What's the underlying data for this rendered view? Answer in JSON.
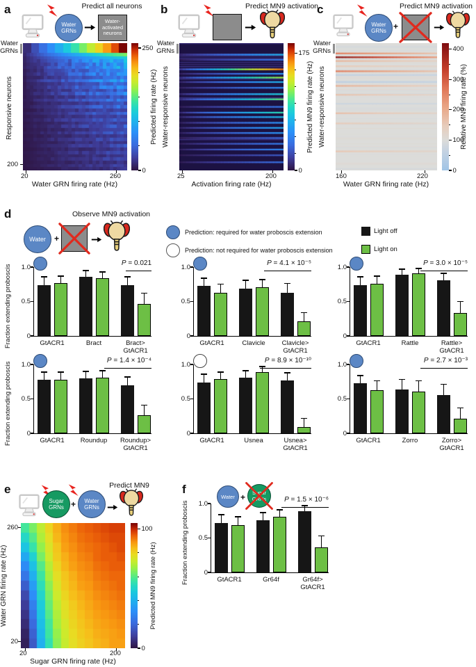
{
  "symbols": {
    "plus": "+"
  },
  "colors": {
    "water_blue": "#5b87c5",
    "water_border": "#2c4a74",
    "sugar_green": "#169a62",
    "sugar_border": "#0a4f33",
    "bar_green": "#6dbf45",
    "bar_black": "#161616",
    "box_gray": "#8c8c8c",
    "cross_red": "#e02a1e",
    "bolt_red": "#e8241f"
  },
  "bar_axis": {
    "y_label": "Fraction extending proboscis",
    "y_ticks": [
      {
        "t": "1.0",
        "v": 1
      },
      {
        "t": "0.5",
        "v": 0.5
      },
      {
        "t": "0",
        "v": 0
      }
    ]
  },
  "panels": {
    "a": {
      "label": "a",
      "title": "Predict all neurons",
      "water_circle": "Water\nGRNs",
      "result_box": "Water-\nactivated\nneurons",
      "y_top": "Water\nGRNs",
      "y_label": "Responsive neurons",
      "y_bottom_tick": "200",
      "x_ticks": [
        "20",
        "260"
      ],
      "x_label": "Water GRN firing rate (Hz)",
      "colorbar_label": "Predicted firing rate (Hz)"
    },
    "b": {
      "label": "b",
      "title": "Predict MN9 activation",
      "y_top": "Water\nGRNs",
      "y_label": "Water-responsive neurons",
      "x_ticks": [
        "25",
        "200"
      ],
      "x_label": "Activation firing rate (Hz)",
      "colorbar_label": "Predicted MN9 firing rate (Hz)"
    },
    "c": {
      "label": "c",
      "title": "Predict MN9 activation",
      "water_circle": "Water\nGRNs",
      "y_top": "Water\nGRNs",
      "y_label": "Water-responsive neurons",
      "x_ticks": [
        "160",
        "220"
      ],
      "x_label": "Water GRN firing rate (Hz)",
      "colorbar_label": "Relative MN9 firing rate (%)"
    },
    "d": {
      "label": "d",
      "title": "Observe MN9 activation",
      "water_circle": "Water",
      "legend": [
        {
          "marker": "blue",
          "text": "Prediction: required for water proboscis extension"
        },
        {
          "marker": "white",
          "text": "Prediction: not required for water proboscis extension"
        }
      ],
      "light_off": "Light off",
      "light_on": "Light on"
    },
    "e": {
      "label": "e",
      "title": "Predict MN9",
      "sugar_circle": "Sugar\nGRNs",
      "water_circle": "Water\nGRNs",
      "y_ticks": [
        "260",
        "20"
      ],
      "y_label": "Water GRN firing rate (Hz)",
      "x_ticks": [
        "20",
        "200"
      ],
      "x_label": "Sugar GRN firing rate (Hz)",
      "colorbar_label": "Predicted MN9 firing rate (Hz)"
    },
    "f": {
      "label": "f",
      "water_circle": "Water",
      "sugar_circle": "Sugar\nGRNs"
    }
  },
  "chart_data": {
    "a": {
      "type": "heatmap",
      "title": "Predict all neurons",
      "colormap": "turbo",
      "x_label": "Water GRN firing rate (Hz)",
      "x_range": [
        20,
        260
      ],
      "y_label": "Responsive neurons (Water GRNs at top, ~200 rows)",
      "vmax": 260,
      "water_band_cols": 13,
      "row_gains": [
        0.62,
        0.47,
        0.4,
        0.34,
        0.37,
        0.28,
        0.32,
        0.24,
        0.34,
        0.22,
        0.28,
        0.19,
        0.26,
        0.17,
        0.24,
        0.15,
        0.22,
        0.14,
        0.2,
        0.13,
        0.18,
        0.12,
        0.17,
        0.11,
        0.16,
        0.1,
        0.15,
        0.1,
        0.14,
        0.09,
        0.13,
        0.09,
        0.12,
        0.08,
        0.11,
        0.08
      ],
      "colorbar": {
        "label": "Predicted firing rate (Hz)",
        "max": 260,
        "ticks": [
          250,
          0
        ],
        "minor": 50
      }
    },
    "b": {
      "type": "heatmap",
      "title": "Predict MN9 activation",
      "colormap": "turbo",
      "x_label": "Activation firing rate (Hz)",
      "x_range": [
        25,
        200
      ],
      "y_label": "Water-responsive neurons",
      "vmax": 190,
      "streaks": [
        {
          "y": 0.085,
          "v": 75
        },
        {
          "y": 0.125,
          "v": 45
        },
        {
          "y": 0.2,
          "v": 170
        },
        {
          "y": 0.235,
          "v": 60
        },
        {
          "y": 0.265,
          "v": 125
        },
        {
          "y": 0.3,
          "v": 75
        },
        {
          "y": 0.345,
          "v": 55
        },
        {
          "y": 0.395,
          "v": 90
        },
        {
          "y": 0.435,
          "v": 115
        },
        {
          "y": 0.495,
          "v": 45
        },
        {
          "y": 0.54,
          "v": 100
        },
        {
          "y": 0.575,
          "v": 80
        },
        {
          "y": 0.62,
          "v": 60
        },
        {
          "y": 0.66,
          "v": 70
        },
        {
          "y": 0.7,
          "v": 62
        },
        {
          "y": 0.74,
          "v": 38
        },
        {
          "y": 0.785,
          "v": 48
        },
        {
          "y": 0.83,
          "v": 55
        },
        {
          "y": 0.875,
          "v": 32
        },
        {
          "y": 0.93,
          "v": 42
        }
      ],
      "colorbar": {
        "label": "Predicted MN9 firing rate (Hz)",
        "max": 190,
        "ticks": [
          175,
          0
        ],
        "minor": 25
      }
    },
    "c": {
      "type": "heatmap",
      "title": "Predict MN9 activation",
      "colormap": "coolwarm-light",
      "x_label": "Water GRN firing rate (Hz)",
      "x_range": [
        160,
        220
      ],
      "y_label": "Water-responsive neurons",
      "vmax": 420,
      "background": 100,
      "streaks": [
        {
          "y": 0.075,
          "v": 260
        },
        {
          "y": 0.105,
          "v": 410
        },
        {
          "y": 0.135,
          "v": 180
        },
        {
          "y": 0.175,
          "v": 150
        },
        {
          "y": 0.215,
          "v": 260
        },
        {
          "y": 0.245,
          "v": 60
        },
        {
          "y": 0.3,
          "v": 55
        },
        {
          "y": 0.33,
          "v": 190
        },
        {
          "y": 0.4,
          "v": 165
        },
        {
          "y": 0.47,
          "v": 75
        },
        {
          "y": 0.545,
          "v": 170
        },
        {
          "y": 0.625,
          "v": 150
        },
        {
          "y": 0.845,
          "v": 155
        }
      ],
      "colorbar": {
        "label": "Relative MN9 firing rate (%)",
        "max": 420,
        "ticks": [
          400,
          300,
          200,
          100,
          0
        ],
        "minor": 50
      }
    },
    "e": {
      "type": "heatmap",
      "title": "Predict MN9",
      "colormap": "turbo",
      "x_label": "Sugar GRN firing rate (Hz)",
      "x_range": [
        20,
        200
      ],
      "y_label": "Water GRN firing rate (Hz)",
      "y_range": [
        20,
        260
      ],
      "vmax": 105,
      "matrix": [
        [
          58,
          64,
          72,
          80,
          86,
          90,
          92,
          94,
          95,
          96,
          97,
          98,
          98
        ],
        [
          52,
          60,
          70,
          78,
          85,
          89,
          91,
          93,
          94,
          95,
          96,
          97,
          97
        ],
        [
          46,
          56,
          67,
          76,
          83,
          88,
          90,
          92,
          93,
          94,
          95,
          96,
          97
        ],
        [
          38,
          50,
          64,
          74,
          82,
          86,
          89,
          91,
          92,
          94,
          95,
          95,
          96
        ],
        [
          30,
          45,
          60,
          71,
          80,
          85,
          88,
          90,
          91,
          93,
          94,
          95,
          95
        ],
        [
          24,
          40,
          57,
          69,
          78,
          83,
          86,
          89,
          90,
          92,
          93,
          94,
          94
        ],
        [
          18,
          35,
          54,
          66,
          76,
          82,
          85,
          88,
          89,
          91,
          92,
          93,
          94
        ],
        [
          13,
          31,
          51,
          64,
          74,
          80,
          84,
          86,
          88,
          90,
          91,
          92,
          93
        ],
        [
          10,
          27,
          48,
          62,
          72,
          78,
          82,
          85,
          87,
          89,
          90,
          91,
          92
        ],
        [
          8,
          24,
          46,
          60,
          70,
          77,
          81,
          84,
          86,
          88,
          89,
          90,
          91
        ],
        [
          6,
          21,
          44,
          58,
          69,
          75,
          80,
          83,
          85,
          87,
          88,
          89,
          90
        ],
        [
          4,
          19,
          42,
          57,
          67,
          74,
          79,
          82,
          84,
          86,
          87,
          88,
          89
        ],
        [
          3,
          17,
          40,
          55,
          66,
          73,
          78,
          81,
          83,
          85,
          86,
          88,
          88
        ]
      ],
      "colorbar": {
        "label": "Predicted MN9 firing rate (Hz)",
        "max": 105,
        "ticks": [
          100,
          0
        ],
        "minor": 20
      }
    },
    "d_charts": [
      {
        "name": "Bract",
        "marker": "blue",
        "p": "P = 0.021",
        "show_ylab": true,
        "groups": [
          {
            "label": "GtACR1",
            "off": [
              0.74,
              0.12
            ],
            "on": [
              0.77,
              0.1
            ]
          },
          {
            "label": "Bract",
            "off": [
              0.86,
              0.09
            ],
            "on": [
              0.84,
              0.09
            ]
          },
          {
            "label": "Bract>\nGtACR1",
            "off": [
              0.74,
              0.12
            ],
            "on": [
              0.46,
              0.16
            ]
          }
        ]
      },
      {
        "name": "Clavicle",
        "marker": "blue",
        "p": "P = 4.1 × 10⁻⁵",
        "show_ylab": false,
        "groups": [
          {
            "label": "GtACR1",
            "off": [
              0.73,
              0.11
            ],
            "on": [
              0.63,
              0.12
            ]
          },
          {
            "label": "Clavicle",
            "off": [
              0.69,
              0.12
            ],
            "on": [
              0.71,
              0.11
            ]
          },
          {
            "label": "Clavicle>\nGtACR1",
            "off": [
              0.63,
              0.13
            ],
            "on": [
              0.21,
              0.13
            ]
          }
        ]
      },
      {
        "name": "Rattle",
        "marker": "blue",
        "p": "P = 3.0 × 10⁻⁵",
        "show_ylab": false,
        "groups": [
          {
            "label": "GtACR1",
            "off": [
              0.74,
              0.12
            ],
            "on": [
              0.76,
              0.11
            ]
          },
          {
            "label": "Rattle",
            "off": [
              0.89,
              0.08
            ],
            "on": [
              0.91,
              0.07
            ]
          },
          {
            "label": "Rattle>\nGtACR1",
            "off": [
              0.81,
              0.1
            ],
            "on": [
              0.33,
              0.17
            ]
          }
        ]
      },
      {
        "name": "Roundup",
        "marker": "blue",
        "p": "P = 1.4 × 10⁻⁴",
        "show_ylab": true,
        "groups": [
          {
            "label": "GtACR1",
            "off": [
              0.78,
              0.11
            ],
            "on": [
              0.78,
              0.11
            ]
          },
          {
            "label": "Roundup",
            "off": [
              0.8,
              0.1
            ],
            "on": [
              0.81,
              0.1
            ]
          },
          {
            "label": "Roundup>\nGtACR1",
            "off": [
              0.7,
              0.12
            ],
            "on": [
              0.26,
              0.15
            ]
          }
        ]
      },
      {
        "name": "Usnea",
        "marker": "white",
        "p": "P = 8.9 × 10⁻¹⁰",
        "show_ylab": false,
        "groups": [
          {
            "label": "GtACR1",
            "off": [
              0.74,
              0.12
            ],
            "on": [
              0.79,
              0.1
            ]
          },
          {
            "label": "Usnea",
            "off": [
              0.81,
              0.1
            ],
            "on": [
              0.89,
              0.08
            ]
          },
          {
            "label": "Usnea>\nGtACR1",
            "off": [
              0.77,
              0.11
            ],
            "on": [
              0.09,
              0.13
            ]
          }
        ]
      },
      {
        "name": "Zorro",
        "marker": "blue",
        "p": "P = 2.7 × 10⁻³",
        "show_ylab": false,
        "groups": [
          {
            "label": "GtACR1",
            "off": [
              0.73,
              0.11
            ],
            "on": [
              0.63,
              0.13
            ]
          },
          {
            "label": "Zorro",
            "off": [
              0.64,
              0.14
            ],
            "on": [
              0.61,
              0.15
            ]
          },
          {
            "label": "Zorro>\nGtACR1",
            "off": [
              0.56,
              0.15
            ],
            "on": [
              0.21,
              0.16
            ]
          }
        ]
      }
    ],
    "f_chart": {
      "name": "Gr64f",
      "marker": null,
      "p": "P = 1.5 × 10⁻⁶",
      "show_ylab": true,
      "groups": [
        {
          "label": "GtACR1",
          "off": [
            0.72,
            0.12
          ],
          "on": [
            0.69,
            0.12
          ]
        },
        {
          "label": "Gr64f",
          "off": [
            0.76,
            0.11
          ],
          "on": [
            0.81,
            0.1
          ]
        },
        {
          "label": "Gr64f>\nGtACR1",
          "off": [
            0.89,
            0.08
          ],
          "on": [
            0.36,
            0.17
          ]
        }
      ]
    }
  }
}
